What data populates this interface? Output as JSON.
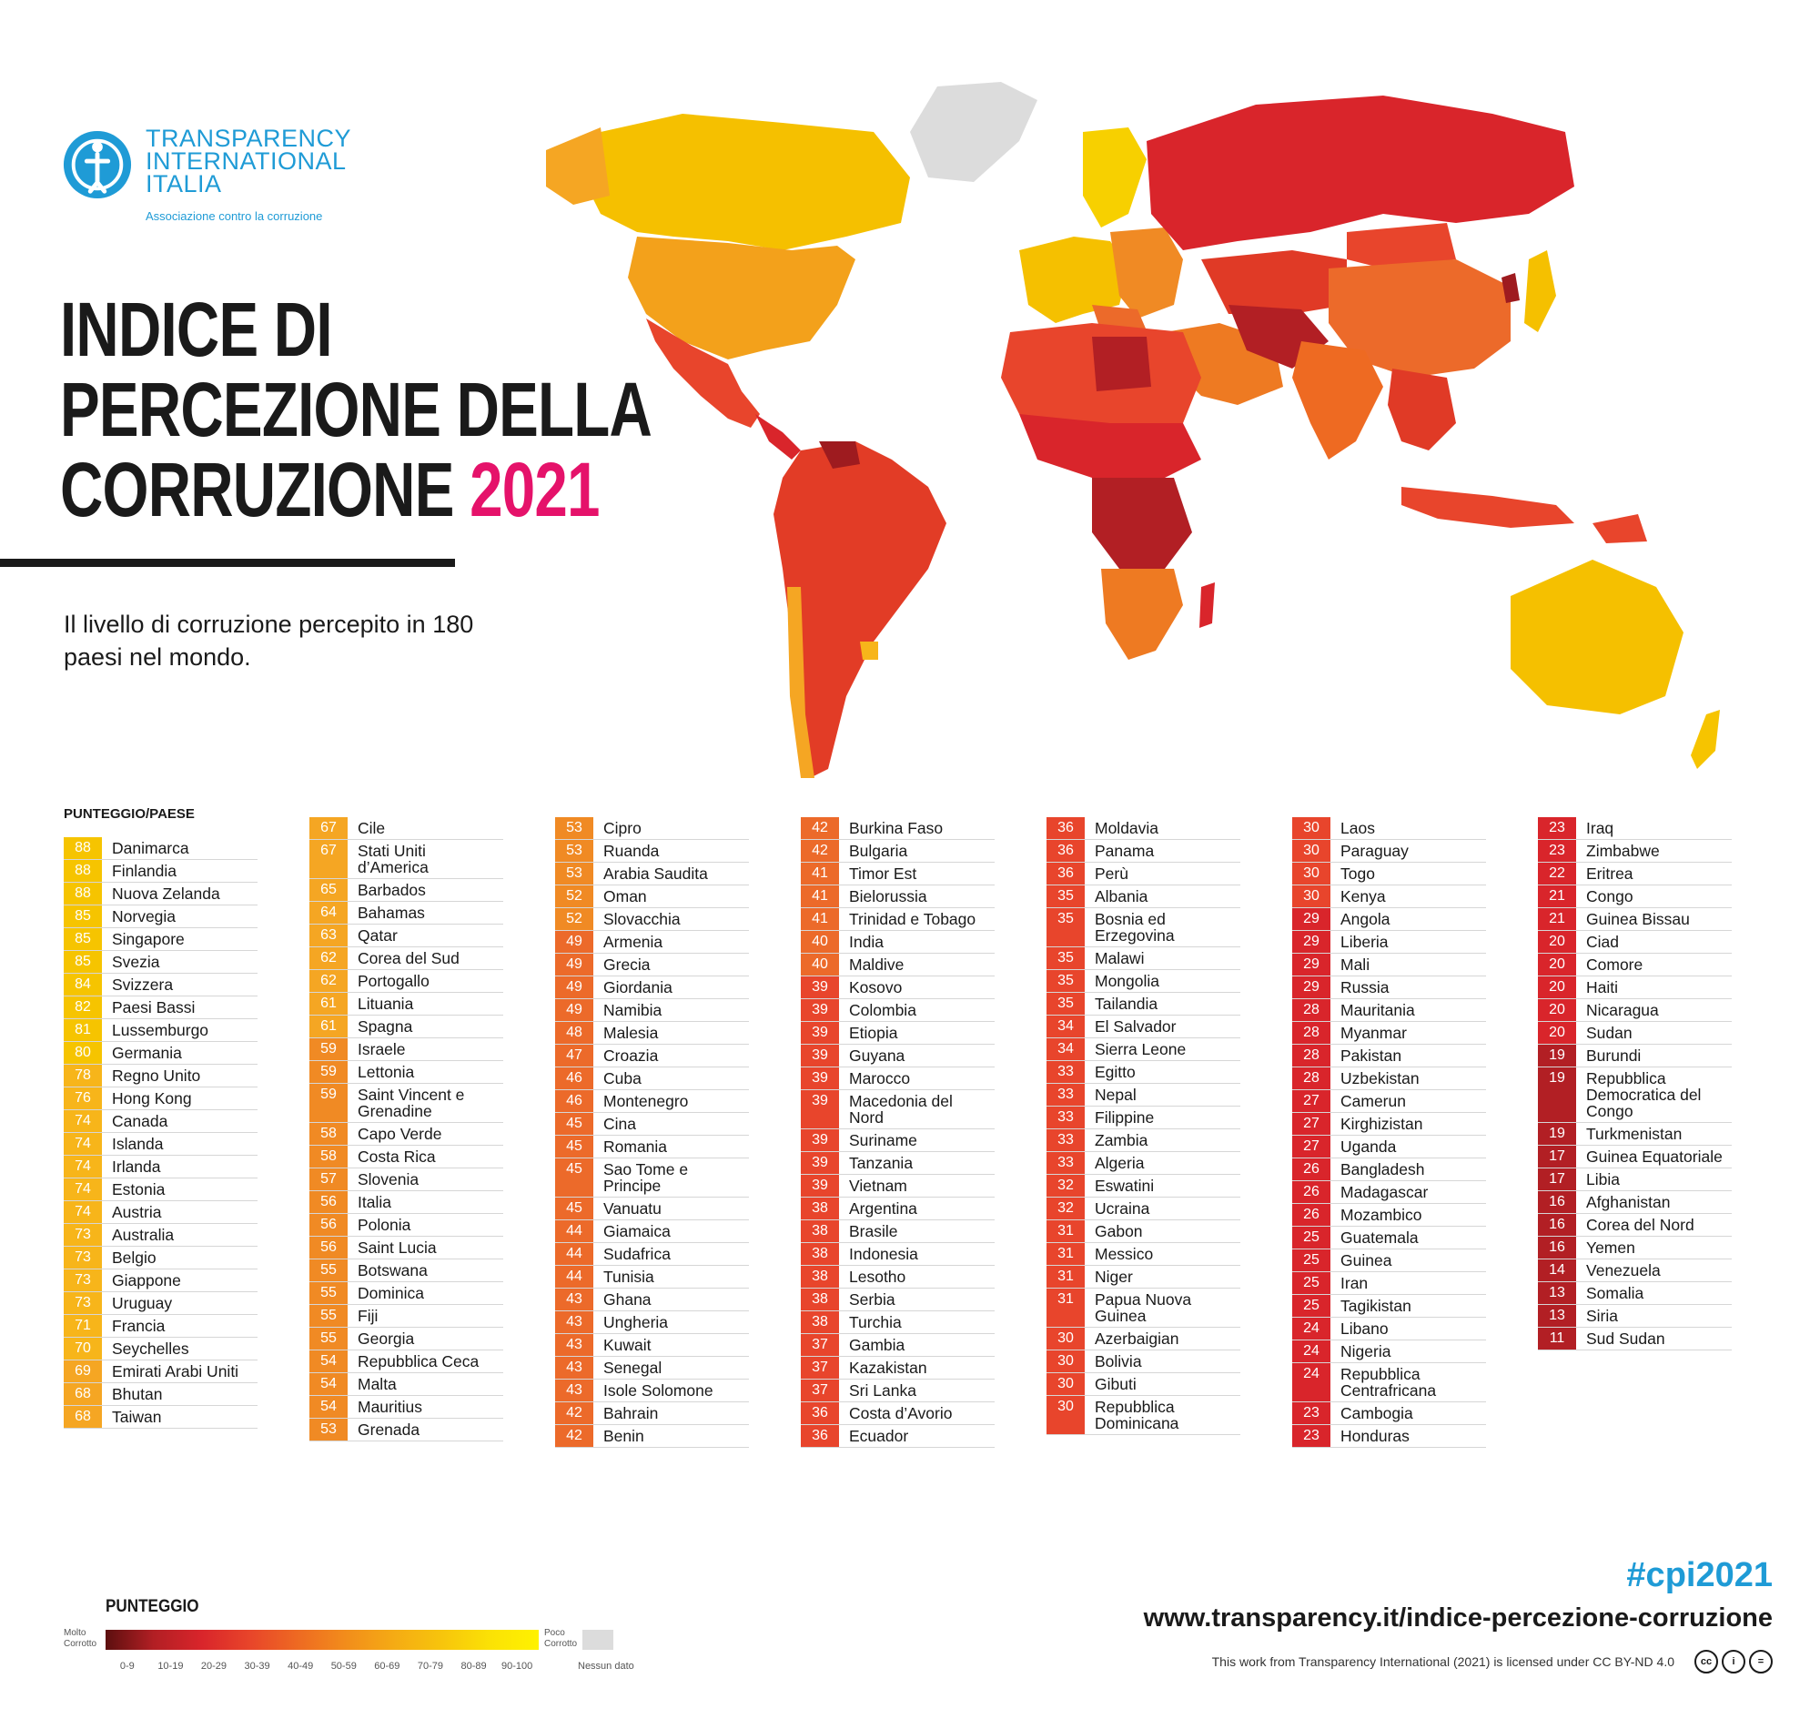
{
  "logo": {
    "line1": "TRANSPARENCY",
    "line2": "INTERNATIONAL",
    "line3": "ITALIA",
    "tagline": "Associazione contro la corruzione",
    "color": "#1f9bd6"
  },
  "title": {
    "line1": "INDICE DI",
    "line2": "PERCEZIONE DELLA",
    "line3": "CORRUZIONE",
    "year": "2021",
    "year_color": "#e5126a"
  },
  "subtitle": "Il livello di corruzione percepito in 180 paesi nel mondo.",
  "ranking_header": "PUNTEGGIO/PAESE",
  "ranking": [
    [
      [
        "88",
        "Danimarca"
      ],
      [
        "88",
        "Finlandia"
      ],
      [
        "88",
        "Nuova Zelanda"
      ],
      [
        "85",
        "Norvegia"
      ],
      [
        "85",
        "Singapore"
      ],
      [
        "85",
        "Svezia"
      ],
      [
        "84",
        "Svizzera"
      ],
      [
        "82",
        "Paesi Bassi"
      ],
      [
        "81",
        "Lussemburgo"
      ],
      [
        "80",
        "Germania"
      ],
      [
        "78",
        "Regno Unito"
      ],
      [
        "76",
        "Hong Kong"
      ],
      [
        "74",
        "Canada"
      ],
      [
        "74",
        "Islanda"
      ],
      [
        "74",
        "Irlanda"
      ],
      [
        "74",
        "Estonia"
      ],
      [
        "74",
        "Austria"
      ],
      [
        "73",
        "Australia"
      ],
      [
        "73",
        "Belgio"
      ],
      [
        "73",
        "Giappone"
      ],
      [
        "73",
        "Uruguay"
      ],
      [
        "71",
        "Francia"
      ],
      [
        "70",
        "Seychelles"
      ],
      [
        "69",
        "Emirati Arabi Uniti"
      ],
      [
        "68",
        "Bhutan"
      ],
      [
        "68",
        "Taiwan"
      ]
    ],
    [
      [
        "67",
        "Cile"
      ],
      [
        "67",
        "Stati Uniti d’America"
      ],
      [
        "65",
        "Barbados"
      ],
      [
        "64",
        "Bahamas"
      ],
      [
        "63",
        "Qatar"
      ],
      [
        "62",
        "Corea del Sud"
      ],
      [
        "62",
        "Portogallo"
      ],
      [
        "61",
        "Lituania"
      ],
      [
        "61",
        "Spagna"
      ],
      [
        "59",
        "Israele"
      ],
      [
        "59",
        "Lettonia"
      ],
      [
        "59",
        "Saint Vincent e Grenadine"
      ],
      [
        "58",
        "Capo Verde"
      ],
      [
        "58",
        "Costa Rica"
      ],
      [
        "57",
        "Slovenia"
      ],
      [
        "56",
        "Italia"
      ],
      [
        "56",
        "Polonia"
      ],
      [
        "56",
        "Saint Lucia"
      ],
      [
        "55",
        "Botswana"
      ],
      [
        "55",
        "Dominica"
      ],
      [
        "55",
        "Fiji"
      ],
      [
        "55",
        "Georgia"
      ],
      [
        "54",
        "Repubblica Ceca"
      ],
      [
        "54",
        "Malta"
      ],
      [
        "54",
        "Mauritius"
      ],
      [
        "53",
        "Grenada"
      ]
    ],
    [
      [
        "53",
        "Cipro"
      ],
      [
        "53",
        "Ruanda"
      ],
      [
        "53",
        "Arabia Saudita"
      ],
      [
        "52",
        "Oman"
      ],
      [
        "52",
        "Slovacchia"
      ],
      [
        "49",
        "Armenia"
      ],
      [
        "49",
        "Grecia"
      ],
      [
        "49",
        "Giordania"
      ],
      [
        "49",
        "Namibia"
      ],
      [
        "48",
        "Malesia"
      ],
      [
        "47",
        "Croazia"
      ],
      [
        "46",
        "Cuba"
      ],
      [
        "46",
        "Montenegro"
      ],
      [
        "45",
        "Cina"
      ],
      [
        "45",
        "Romania"
      ],
      [
        "45",
        "Sao Tome e Principe"
      ],
      [
        "45",
        "Vanuatu"
      ],
      [
        "44",
        "Giamaica"
      ],
      [
        "44",
        "Sudafrica"
      ],
      [
        "44",
        "Tunisia"
      ],
      [
        "43",
        "Ghana"
      ],
      [
        "43",
        "Ungheria"
      ],
      [
        "43",
        "Kuwait"
      ],
      [
        "43",
        "Senegal"
      ],
      [
        "43",
        "Isole Solomone"
      ],
      [
        "42",
        "Bahrain"
      ],
      [
        "42",
        "Benin"
      ]
    ],
    [
      [
        "42",
        "Burkina Faso"
      ],
      [
        "42",
        "Bulgaria"
      ],
      [
        "41",
        "Timor Est"
      ],
      [
        "41",
        "Bielorussia"
      ],
      [
        "41",
        "Trinidad e Tobago"
      ],
      [
        "40",
        "India"
      ],
      [
        "40",
        "Maldive"
      ],
      [
        "39",
        "Kosovo"
      ],
      [
        "39",
        "Colombia"
      ],
      [
        "39",
        "Etiopia"
      ],
      [
        "39",
        "Guyana"
      ],
      [
        "39",
        "Marocco"
      ],
      [
        "39",
        "Macedonia del Nord"
      ],
      [
        "39",
        "Suriname"
      ],
      [
        "39",
        "Tanzania"
      ],
      [
        "39",
        "Vietnam"
      ],
      [
        "38",
        "Argentina"
      ],
      [
        "38",
        "Brasile"
      ],
      [
        "38",
        "Indonesia"
      ],
      [
        "38",
        "Lesotho"
      ],
      [
        "38",
        "Serbia"
      ],
      [
        "38",
        "Turchia"
      ],
      [
        "37",
        "Gambia"
      ],
      [
        "37",
        "Kazakistan"
      ],
      [
        "37",
        "Sri Lanka"
      ],
      [
        "36",
        "Costa d’Avorio"
      ],
      [
        "36",
        "Ecuador"
      ]
    ],
    [
      [
        "36",
        "Moldavia"
      ],
      [
        "36",
        "Panama"
      ],
      [
        "36",
        "Perù"
      ],
      [
        "35",
        "Albania"
      ],
      [
        "35",
        "Bosnia ed Erzegovina"
      ],
      [
        "35",
        "Malawi"
      ],
      [
        "35",
        "Mongolia"
      ],
      [
        "35",
        "Tailandia"
      ],
      [
        "34",
        "El Salvador"
      ],
      [
        "34",
        "Sierra Leone"
      ],
      [
        "33",
        "Egitto"
      ],
      [
        "33",
        "Nepal"
      ],
      [
        "33",
        "Filippine"
      ],
      [
        "33",
        "Zambia"
      ],
      [
        "33",
        "Algeria"
      ],
      [
        "32",
        "Eswatini"
      ],
      [
        "32",
        "Ucraina"
      ],
      [
        "31",
        "Gabon"
      ],
      [
        "31",
        "Messico"
      ],
      [
        "31",
        "Niger"
      ],
      [
        "31",
        "Papua Nuova Guinea"
      ],
      [
        "30",
        "Azerbaigian"
      ],
      [
        "30",
        "Bolivia"
      ],
      [
        "30",
        "Gibuti"
      ],
      [
        "30",
        "Repubblica Dominicana"
      ]
    ],
    [
      [
        "30",
        "Laos"
      ],
      [
        "30",
        "Paraguay"
      ],
      [
        "30",
        "Togo"
      ],
      [
        "30",
        "Kenya"
      ],
      [
        "29",
        "Angola"
      ],
      [
        "29",
        "Liberia"
      ],
      [
        "29",
        "Mali"
      ],
      [
        "29",
        "Russia"
      ],
      [
        "28",
        "Mauritania"
      ],
      [
        "28",
        "Myanmar"
      ],
      [
        "28",
        "Pakistan"
      ],
      [
        "28",
        "Uzbekistan"
      ],
      [
        "27",
        "Camerun"
      ],
      [
        "27",
        "Kirghizistan"
      ],
      [
        "27",
        "Uganda"
      ],
      [
        "26",
        "Bangladesh"
      ],
      [
        "26",
        "Madagascar"
      ],
      [
        "26",
        "Mozambico"
      ],
      [
        "25",
        "Guatemala"
      ],
      [
        "25",
        "Guinea"
      ],
      [
        "25",
        "Iran"
      ],
      [
        "25",
        "Tagikistan"
      ],
      [
        "24",
        "Libano"
      ],
      [
        "24",
        "Nigeria"
      ],
      [
        "24",
        "Repubblica Centrafricana"
      ],
      [
        "23",
        "Cambogia"
      ],
      [
        "23",
        "Honduras"
      ]
    ],
    [
      [
        "23",
        "Iraq"
      ],
      [
        "23",
        "Zimbabwe"
      ],
      [
        "22",
        "Eritrea"
      ],
      [
        "21",
        "Congo"
      ],
      [
        "21",
        "Guinea Bissau"
      ],
      [
        "20",
        "Ciad"
      ],
      [
        "20",
        "Comore"
      ],
      [
        "20",
        "Haiti"
      ],
      [
        "20",
        "Nicaragua"
      ],
      [
        "20",
        "Sudan"
      ],
      [
        "19",
        "Burundi"
      ],
      [
        "19",
        "Repubblica Democratica del Congo"
      ],
      [
        "19",
        "Turkmenistan"
      ],
      [
        "17",
        "Guinea Equatoriale"
      ],
      [
        "17",
        "Libia"
      ],
      [
        "16",
        "Afghanistan"
      ],
      [
        "16",
        "Corea del Nord"
      ],
      [
        "16",
        "Yemen"
      ],
      [
        "14",
        "Venezuela"
      ],
      [
        "13",
        "Somalia"
      ],
      [
        "13",
        "Siria"
      ],
      [
        "11",
        "Sud Sudan"
      ]
    ]
  ],
  "score_colors": {
    "80-100": "#f6c400",
    "70-79": "#f7b51a",
    "60-69": "#f5a623",
    "50-59": "#f08a24",
    "40-49": "#ec6a2a",
    "30-39": "#e8452c",
    "20-29": "#d9252b",
    "10-19": "#b21f24"
  },
  "legend": {
    "title": "PUNTEGGIO",
    "left_label_1": "Molto",
    "left_label_2": "Corrotto",
    "right_label_1": "Poco",
    "right_label_2": "Corrotto",
    "no_data": "Nessun dato",
    "ticks": [
      "0-9",
      "10-19",
      "20-29",
      "30-39",
      "40-49",
      "50-59",
      "60-69",
      "70-79",
      "80-89",
      "90-100"
    ]
  },
  "footer": {
    "hashtag": "#cpi2021",
    "website": "www.transparency.it/indice-percezione-corruzione",
    "license": "This work from Transparency International (2021) is licensed under CC BY-ND 4.0"
  }
}
